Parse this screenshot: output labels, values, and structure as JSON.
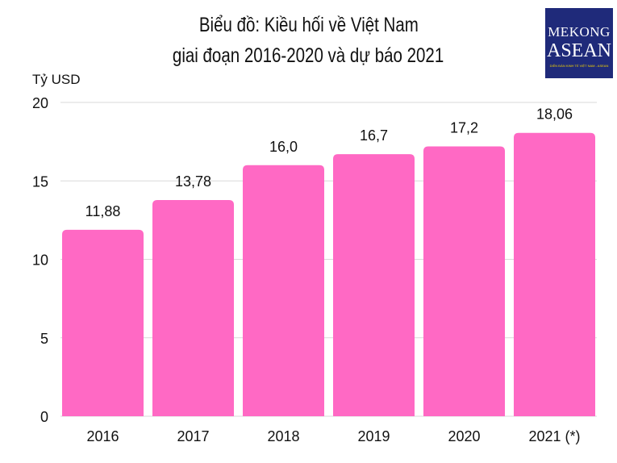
{
  "chart_data": {
    "type": "bar",
    "title": [
      "Biểu đồ: Kiều hối về Việt Nam",
      "giai đoạn 2016-2020 và dự báo 2021"
    ],
    "ylabel": "Tỷ USD",
    "categories": [
      "2016",
      "2017",
      "2018",
      "2019",
      "2020",
      "2021 (*)"
    ],
    "values": [
      11.88,
      13.78,
      16.0,
      16.7,
      17.2,
      18.06
    ],
    "data_labels": [
      "11,88",
      "13,78",
      "16,0",
      "16,7",
      "17,2",
      "18,06"
    ],
    "ylim": [
      0,
      20
    ],
    "yticks": [
      0,
      5,
      10,
      15,
      20
    ],
    "grid": true,
    "bar_color": "#ff69c4"
  },
  "logo": {
    "line1": "MEKONG",
    "line2": "ASEAN",
    "tagline": "DIỄN ĐÀN KINH TẾ VIỆT NAM - ASEAN",
    "bg_color": "#1f2a7a"
  }
}
